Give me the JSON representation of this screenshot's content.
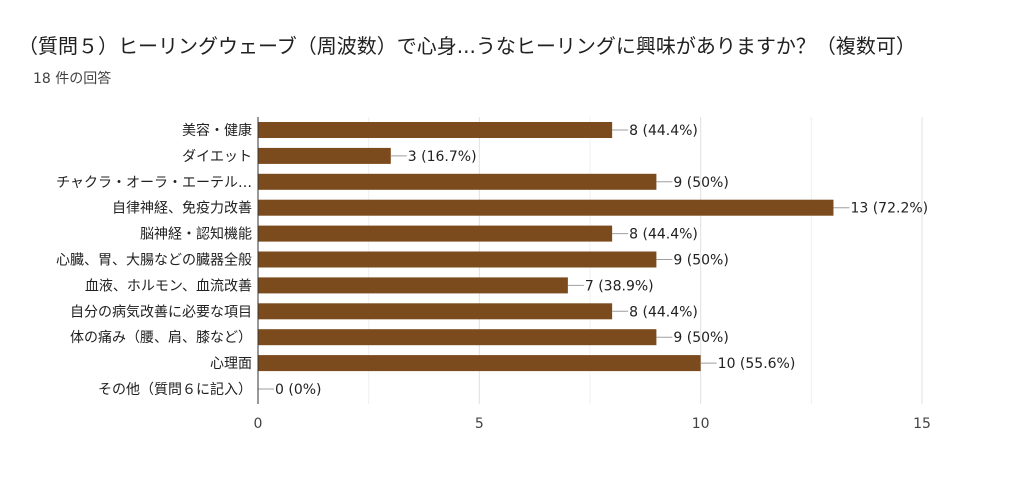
{
  "header": {
    "title": "（質問５）ヒーリングウェーブ（周波数）で心身...うなヒーリングに興味がありますか？（複数可）",
    "response_count": "18 件の回答"
  },
  "chart_data": {
    "type": "bar",
    "orientation": "horizontal",
    "categories": [
      "美容・健康",
      "ダイエット",
      "チャクラ・オーラ・エーテル…",
      "自律神経、免疫力改善",
      "脳神経・認知機能",
      "心臓、胃、大腸などの臓器全般",
      "血液、ホルモン、血流改善",
      "自分の病気改善に必要な項目",
      "体の痛み（腰、肩、膝など）",
      "心理面",
      "その他（質問６に記入）"
    ],
    "values": [
      8,
      3,
      9,
      13,
      8,
      9,
      7,
      8,
      9,
      10,
      0
    ],
    "value_labels": [
      "8 (44.4%)",
      "3 (16.7%)",
      "9 (50%)",
      "13 (72.2%)",
      "8 (44.4%)",
      "9 (50%)",
      "7 (38.9%)",
      "8 (44.4%)",
      "9 (50%)",
      "10 (55.6%)",
      "0 (0%)"
    ],
    "xlim": [
      0,
      15
    ],
    "xticks": [
      0,
      5,
      10,
      15
    ],
    "grid": true,
    "bar_color": "#7b4b1d"
  }
}
